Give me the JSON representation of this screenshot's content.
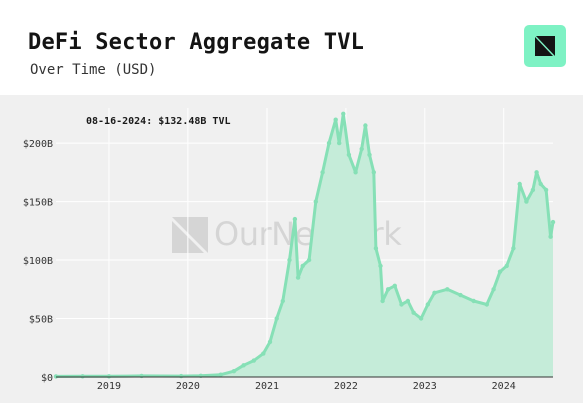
{
  "header": {
    "title": "DeFi Sector Aggregate TVL",
    "subtitle": "Over Time (USD)"
  },
  "branding": {
    "logo_icon": "ournetwork-logo-icon",
    "logo_color": "#7ef2c4",
    "watermark_text": "OurNetwork"
  },
  "colors": {
    "series_fill": "#c5ecd9",
    "series_line": "#86e0b6",
    "panel_bg": "#f0f0f0",
    "grid": "#ffffff"
  },
  "chart_data": {
    "type": "area",
    "title": "DeFi Sector Aggregate TVL",
    "subtitle": "Over Time (USD)",
    "xlabel": "",
    "ylabel": "",
    "x_range": [
      "2018-05-01",
      "2024-08-16"
    ],
    "ylim": [
      0,
      230
    ],
    "y_ticks": [
      {
        "value": 0,
        "label": "$0"
      },
      {
        "value": 50,
        "label": "$50B"
      },
      {
        "value": 100,
        "label": "$100B"
      },
      {
        "value": 150,
        "label": "$150B"
      },
      {
        "value": 200,
        "label": "$200B"
      }
    ],
    "x_ticks": [
      {
        "value": "2019-01-01",
        "label": "2019"
      },
      {
        "value": "2020-01-01",
        "label": "2020"
      },
      {
        "value": "2021-01-01",
        "label": "2021"
      },
      {
        "value": "2022-01-01",
        "label": "2022"
      },
      {
        "value": "2023-01-01",
        "label": "2023"
      },
      {
        "value": "2024-01-01",
        "label": "2024"
      }
    ],
    "grid": true,
    "annotation": "08-16-2024: $132.48B TVL",
    "series": [
      {
        "unit": "USD billions",
        "points": [
          [
            "2018-05-01",
            0.5
          ],
          [
            "2018-09-01",
            0.6
          ],
          [
            "2019-01-01",
            0.6
          ],
          [
            "2019-06-01",
            0.9
          ],
          [
            "2019-12-01",
            0.8
          ],
          [
            "2020-03-01",
            1.0
          ],
          [
            "2020-06-01",
            2.0
          ],
          [
            "2020-08-01",
            5.0
          ],
          [
            "2020-09-15",
            10.0
          ],
          [
            "2020-11-01",
            14.0
          ],
          [
            "2020-12-15",
            20.0
          ],
          [
            "2021-01-15",
            30.0
          ],
          [
            "2021-02-15",
            50.0
          ],
          [
            "2021-03-15",
            65.0
          ],
          [
            "2021-04-15",
            100.0
          ],
          [
            "2021-05-10",
            135.0
          ],
          [
            "2021-05-25",
            85.0
          ],
          [
            "2021-06-15",
            95.0
          ],
          [
            "2021-07-15",
            100.0
          ],
          [
            "2021-08-15",
            150.0
          ],
          [
            "2021-09-15",
            175.0
          ],
          [
            "2021-10-15",
            200.0
          ],
          [
            "2021-11-15",
            220.0
          ],
          [
            "2021-12-01",
            200.0
          ],
          [
            "2021-12-20",
            225.0
          ],
          [
            "2022-01-15",
            190.0
          ],
          [
            "2022-02-15",
            175.0
          ],
          [
            "2022-03-15",
            195.0
          ],
          [
            "2022-04-01",
            215.0
          ],
          [
            "2022-04-20",
            190.0
          ],
          [
            "2022-05-10",
            175.0
          ],
          [
            "2022-05-20",
            110.0
          ],
          [
            "2022-06-10",
            95.0
          ],
          [
            "2022-06-20",
            65.0
          ],
          [
            "2022-07-15",
            75.0
          ],
          [
            "2022-08-15",
            78.0
          ],
          [
            "2022-09-15",
            62.0
          ],
          [
            "2022-10-15",
            65.0
          ],
          [
            "2022-11-10",
            55.0
          ],
          [
            "2022-12-15",
            50.0
          ],
          [
            "2023-01-15",
            62.0
          ],
          [
            "2023-02-15",
            72.0
          ],
          [
            "2023-04-15",
            75.0
          ],
          [
            "2023-06-15",
            70.0
          ],
          [
            "2023-08-15",
            65.0
          ],
          [
            "2023-10-15",
            62.0
          ],
          [
            "2023-11-15",
            75.0
          ],
          [
            "2023-12-15",
            90.0
          ],
          [
            "2024-01-15",
            95.0
          ],
          [
            "2024-02-15",
            110.0
          ],
          [
            "2024-03-15",
            165.0
          ],
          [
            "2024-04-15",
            150.0
          ],
          [
            "2024-05-15",
            160.0
          ],
          [
            "2024-06-01",
            175.0
          ],
          [
            "2024-06-20",
            165.0
          ],
          [
            "2024-07-15",
            160.0
          ],
          [
            "2024-08-05",
            120.0
          ],
          [
            "2024-08-16",
            132.48
          ]
        ]
      }
    ]
  }
}
